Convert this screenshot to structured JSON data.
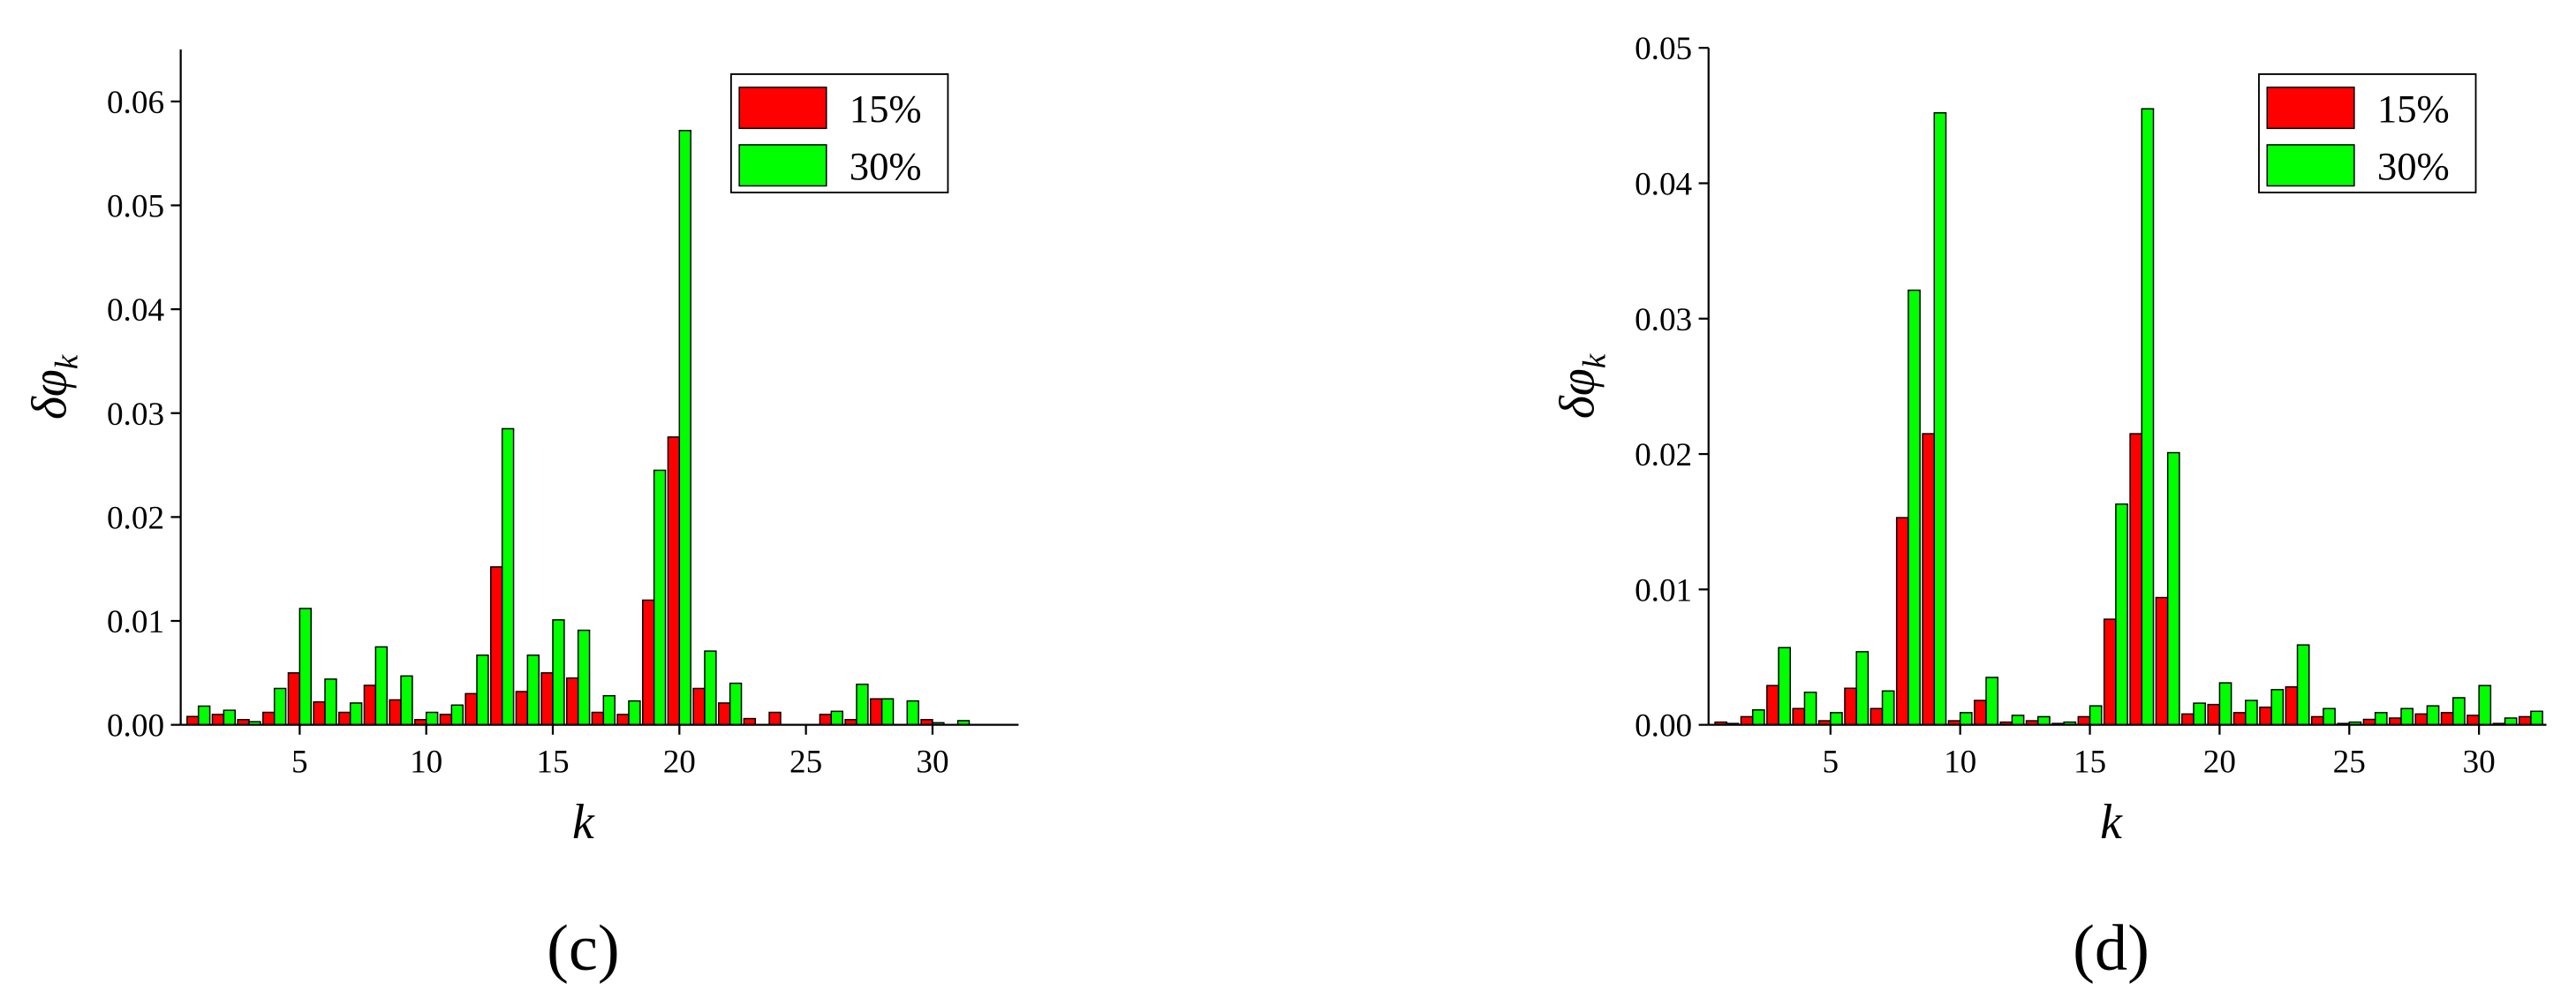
{
  "chart_data": [
    {
      "type": "bar",
      "caption": "(c)",
      "xlabel": "k",
      "ylabel": {
        "main": "δφ",
        "sub": "k"
      },
      "legend": "upper right",
      "x": [
        1,
        2,
        3,
        4,
        5,
        6,
        7,
        8,
        9,
        10,
        11,
        12,
        13,
        14,
        15,
        16,
        17,
        18,
        19,
        20,
        21,
        22,
        23,
        24,
        25,
        26,
        27,
        28,
        29,
        30,
        31
      ],
      "series": [
        {
          "name": "15%",
          "color": "#ff0000",
          "values": [
            0.0008,
            0.001,
            0.0005,
            0.0012,
            0.005,
            0.0022,
            0.0012,
            0.0038,
            0.0024,
            0.0005,
            0.001,
            0.003,
            0.0152,
            0.0032,
            0.005,
            0.0045,
            0.0012,
            0.001,
            0.012,
            0.0277,
            0.0035,
            0.0021,
            0.0006,
            0.0012,
            0,
            0.001,
            0.0005,
            0.0025,
            0,
            0.0005,
            0
          ]
        },
        {
          "name": "30%",
          "color": "#00ff00",
          "values": [
            0.0018,
            0.0014,
            0.0003,
            0.0035,
            0.0112,
            0.0044,
            0.0021,
            0.0075,
            0.0047,
            0.0012,
            0.0019,
            0.0067,
            0.0285,
            0.0067,
            0.0101,
            0.0091,
            0.0028,
            0.0023,
            0.0245,
            0.0572,
            0.0071,
            0.004,
            0,
            0,
            0,
            0.0013,
            0.0039,
            0.0025,
            0.0023,
            0.0002,
            0.0004
          ]
        }
      ],
      "xlim": [
        0.3,
        33.4
      ],
      "xticks": [
        5,
        10,
        15,
        20,
        25,
        30
      ],
      "ylim": [
        0,
        0.065
      ],
      "yticks": [
        {
          "value": 0,
          "label": "0.00"
        },
        {
          "value": 0.01,
          "label": "0.01"
        },
        {
          "value": 0.02,
          "label": "0.02"
        },
        {
          "value": 0.03,
          "label": "0.03"
        },
        {
          "value": 0.04,
          "label": "0.04"
        },
        {
          "value": 0.05,
          "label": "0.05"
        },
        {
          "value": 0.06,
          "label": "0.06"
        }
      ]
    },
    {
      "type": "bar",
      "caption": "(d)",
      "xlabel": "k",
      "ylabel": {
        "main": "δφ",
        "sub": "k"
      },
      "legend": "upper right",
      "x": [
        1,
        2,
        3,
        4,
        5,
        6,
        7,
        8,
        9,
        10,
        11,
        12,
        13,
        14,
        15,
        16,
        17,
        18,
        19,
        20,
        21,
        22,
        23,
        24,
        25,
        26,
        27,
        28,
        29,
        30,
        31,
        32
      ],
      "series": [
        {
          "name": "15%",
          "color": "#ff0000",
          "values": [
            0.0002,
            0.0006,
            0.0029,
            0.0012,
            0.0003,
            0.0027,
            0.0012,
            0.0153,
            0.0215,
            0.0003,
            0.0018,
            0.0002,
            0.0003,
            0.0001,
            0.0006,
            0.0078,
            0.0215,
            0.0094,
            0.0008,
            0.0015,
            0.0009,
            0.0013,
            0.0028,
            0.0006,
            0.0001,
            0.0004,
            0.0005,
            0.0008,
            0.0009,
            0.0007,
            0.0001,
            0.0006
          ]
        },
        {
          "name": "30%",
          "color": "#00ff00",
          "values": [
            0.0001,
            0.0011,
            0.0057,
            0.0024,
            0.0009,
            0.0054,
            0.0025,
            0.0321,
            0.0452,
            0.0009,
            0.0035,
            0.0007,
            0.0006,
            0.0002,
            0.0014,
            0.0163,
            0.0455,
            0.0201,
            0.0016,
            0.0031,
            0.0018,
            0.0026,
            0.0059,
            0.0012,
            0.0002,
            0.0009,
            0.0012,
            0.0014,
            0.002,
            0.0029,
            0.0005,
            0.001
          ]
        }
      ],
      "xlim": [
        0.3,
        32.6
      ],
      "xticks": [
        5,
        10,
        15,
        20,
        25,
        30
      ],
      "ylim": [
        0,
        0.05
      ],
      "yticks": [
        {
          "value": 0,
          "label": "0.00"
        },
        {
          "value": 0.01,
          "label": "0.01"
        },
        {
          "value": 0.02,
          "label": "0.02"
        },
        {
          "value": 0.03,
          "label": "0.03"
        },
        {
          "value": 0.04,
          "label": "0.04"
        },
        {
          "value": 0.05,
          "label": "0.05"
        }
      ]
    }
  ]
}
